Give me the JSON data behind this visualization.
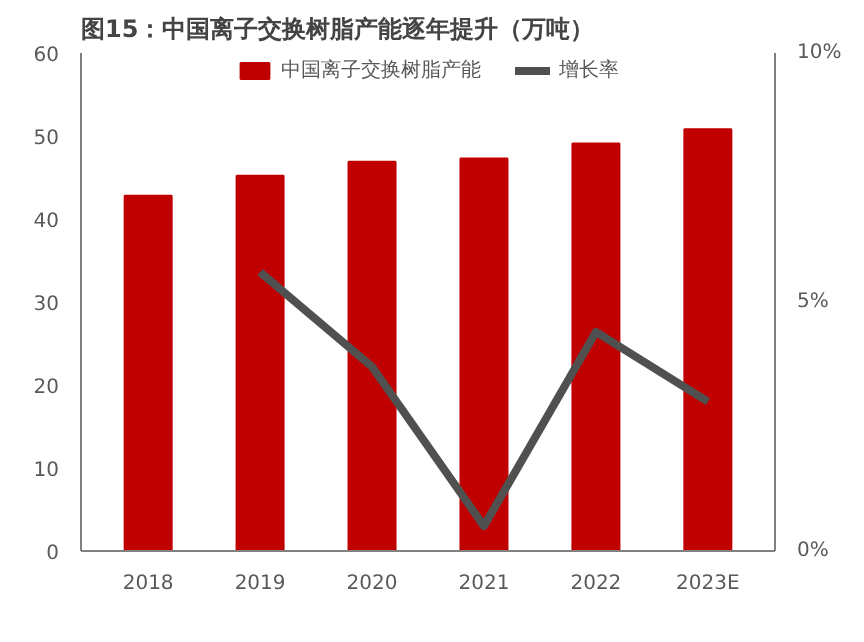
{
  "chart_data": {
    "type": "bar",
    "title": "图15：中国离子交换树脂产能逐年提升（万吨）",
    "categories": [
      "2018",
      "2019",
      "2020",
      "2021",
      "2022",
      "2023E"
    ],
    "series": [
      {
        "name": "中国离子交换树脂产能",
        "color": "#c00000",
        "values": [
          42.8,
          45.2,
          46.9,
          47.3,
          49.1,
          50.8
        ]
      },
      {
        "name": "增长率",
        "type": "line",
        "axis": "y2",
        "color": "#505050",
        "values": [
          null,
          5.6,
          3.7,
          0.5,
          4.4,
          3.0
        ]
      }
    ],
    "ylim": [
      0,
      60
    ],
    "yticks": [
      0,
      10,
      20,
      30,
      40,
      50,
      60
    ],
    "y2lim": [
      0,
      10
    ],
    "y2ticks": [
      {
        "value": 0,
        "label": "0%"
      },
      {
        "value": 5,
        "label": "5%"
      },
      {
        "value": 10,
        "label": "10%"
      }
    ],
    "grid": false,
    "legend": "top"
  }
}
